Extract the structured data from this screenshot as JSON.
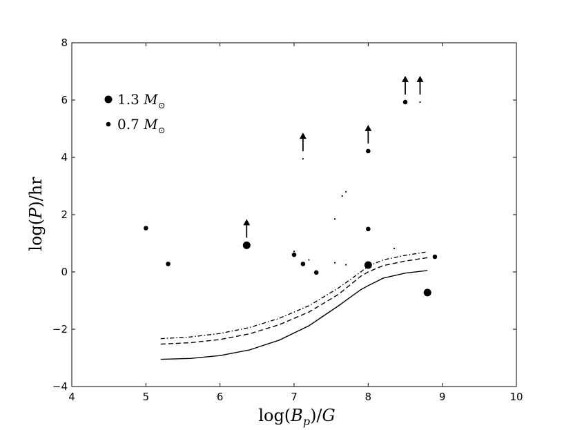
{
  "chart_data": {
    "type": "scatter",
    "title": "",
    "xlabel": "log(B_p)/G",
    "ylabel": "log(P)/hr",
    "xlim": [
      4,
      10
    ],
    "ylim": [
      -4,
      8
    ],
    "x_ticks": [
      4,
      5,
      6,
      7,
      8,
      9,
      10
    ],
    "y_ticks": [
      -4,
      -2,
      0,
      2,
      4,
      6,
      8
    ],
    "x_tick_labels": [
      "4",
      "5",
      "6",
      "7",
      "8",
      "9",
      "10"
    ],
    "y_tick_labels": [
      "−4",
      "−2",
      "0",
      "2",
      "4",
      "6",
      "8"
    ],
    "legend": {
      "position": "upper-left",
      "entries": [
        {
          "label": "1.3",
          "unit": "M",
          "subscript": "⊙",
          "marker": "large-dot"
        },
        {
          "label": "0.7",
          "unit": "M",
          "subscript": "⊙",
          "marker": "small-dot"
        }
      ]
    },
    "points": [
      {
        "x": 5.0,
        "y": 1.53,
        "size": "small",
        "lower_limit": false
      },
      {
        "x": 5.3,
        "y": 0.28,
        "size": "small",
        "lower_limit": false
      },
      {
        "x": 6.36,
        "y": 0.93,
        "size": "large",
        "lower_limit": true
      },
      {
        "x": 7.0,
        "y": 0.6,
        "size": "small",
        "lower_limit": false
      },
      {
        "x": 7.0,
        "y": 0.72,
        "size": "tiny",
        "lower_limit": false
      },
      {
        "x": 7.12,
        "y": 0.28,
        "size": "small",
        "lower_limit": false
      },
      {
        "x": 7.12,
        "y": 3.95,
        "size": "tiny",
        "lower_limit": true
      },
      {
        "x": 7.2,
        "y": 0.42,
        "size": "tiny",
        "lower_limit": false
      },
      {
        "x": 7.3,
        "y": -0.02,
        "size": "small",
        "lower_limit": false
      },
      {
        "x": 7.55,
        "y": 1.85,
        "size": "tiny",
        "lower_limit": false
      },
      {
        "x": 7.55,
        "y": 0.32,
        "size": "tiny",
        "lower_limit": false
      },
      {
        "x": 7.65,
        "y": 2.65,
        "size": "tiny",
        "lower_limit": false
      },
      {
        "x": 7.7,
        "y": 2.8,
        "size": "tiny",
        "lower_limit": false
      },
      {
        "x": 7.7,
        "y": 0.25,
        "size": "tiny",
        "lower_limit": false
      },
      {
        "x": 8.0,
        "y": 0.24,
        "size": "large",
        "lower_limit": false
      },
      {
        "x": 8.0,
        "y": 1.5,
        "size": "small",
        "lower_limit": false
      },
      {
        "x": 8.0,
        "y": 4.22,
        "size": "small",
        "lower_limit": true
      },
      {
        "x": 8.35,
        "y": 0.82,
        "size": "tiny",
        "lower_limit": false
      },
      {
        "x": 8.5,
        "y": 5.93,
        "size": "small",
        "lower_limit": true
      },
      {
        "x": 8.7,
        "y": 5.93,
        "size": "tiny",
        "lower_limit": true
      },
      {
        "x": 8.8,
        "y": -0.72,
        "size": "large",
        "lower_limit": false
      },
      {
        "x": 8.9,
        "y": 0.53,
        "size": "small",
        "lower_limit": false
      }
    ],
    "curves": [
      {
        "name": "solid",
        "style": "solid",
        "x": [
          5.2,
          5.6,
          6.0,
          6.4,
          6.8,
          7.2,
          7.6,
          7.9,
          8.0,
          8.2,
          8.5,
          8.8
        ],
        "y": [
          -3.05,
          -3.02,
          -2.92,
          -2.72,
          -2.38,
          -1.88,
          -1.18,
          -0.62,
          -0.48,
          -0.22,
          -0.04,
          0.05
        ]
      },
      {
        "name": "dashed",
        "style": "dashed",
        "x": [
          5.2,
          5.6,
          6.0,
          6.4,
          6.8,
          7.2,
          7.6,
          7.9,
          8.0,
          8.2,
          8.5,
          8.8
        ],
        "y": [
          -2.52,
          -2.47,
          -2.36,
          -2.16,
          -1.84,
          -1.4,
          -0.78,
          -0.15,
          0.0,
          0.22,
          0.38,
          0.5
        ]
      },
      {
        "name": "dash-dot",
        "style": "dashdot",
        "x": [
          5.2,
          5.6,
          6.0,
          6.4,
          6.8,
          7.2,
          7.6,
          7.9,
          8.0,
          8.2,
          8.5,
          8.8
        ],
        "y": [
          -2.33,
          -2.27,
          -2.15,
          -1.94,
          -1.62,
          -1.18,
          -0.56,
          0.0,
          0.2,
          0.42,
          0.58,
          0.7
        ]
      }
    ]
  }
}
